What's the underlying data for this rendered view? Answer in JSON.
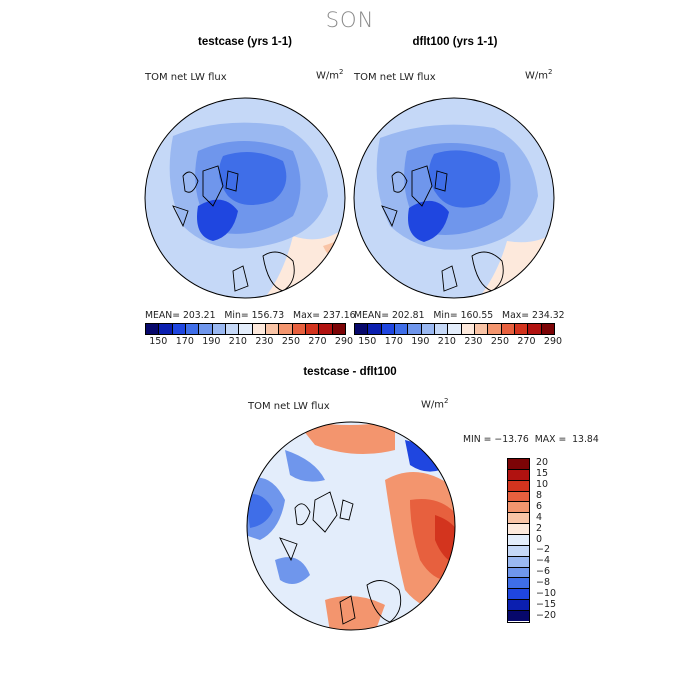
{
  "season": "SON",
  "panels": [
    {
      "title": "testcase (yrs 1-1)",
      "variable": "TOM net LW flux",
      "units_base": "W/m",
      "units_exp": "2",
      "stats": {
        "mean_label": "MEAN=",
        "mean": "203.21",
        "min_label": "Min=",
        "min": "156.73",
        "max_label": "Max=",
        "max": "237.16"
      }
    },
    {
      "title": "dflt100 (yrs 1-1)",
      "variable": "TOM net LW flux",
      "units_base": "W/m",
      "units_exp": "2",
      "stats": {
        "mean_label": "MEAN=",
        "mean": "202.81",
        "min_label": "Min=",
        "min": "160.55",
        "max_label": "Max=",
        "max": "234.32"
      }
    }
  ],
  "colorbar_top": {
    "colors": [
      "#07086b",
      "#0b1fb0",
      "#1f46e0",
      "#3f6ee8",
      "#6f96ec",
      "#9ab8f1",
      "#c5d8f7",
      "#e3edfb",
      "#fde9dc",
      "#f9c4a6",
      "#f3956e",
      "#e7603e",
      "#d3341e",
      "#b11210",
      "#7c0406"
    ],
    "ticks": [
      "150",
      "170",
      "190",
      "210",
      "230",
      "250",
      "270",
      "290"
    ]
  },
  "diff": {
    "title": "testcase - dflt100",
    "variable": "TOM net LW flux",
    "units_base": "W/m",
    "units_exp": "2",
    "minmax": "MIN = −13.76  MAX =  13.84",
    "colorbar": {
      "colors": [
        "#7c0406",
        "#b11210",
        "#d3341e",
        "#e7603e",
        "#f3956e",
        "#f9c4a6",
        "#fde9dc",
        "#e3edfb",
        "#c5d8f7",
        "#9ab8f1",
        "#6f96ec",
        "#3f6ee8",
        "#1f46e0",
        "#0b1fb0",
        "#07086b"
      ],
      "ticks": [
        "20",
        "15",
        "10",
        "8",
        "6",
        "4",
        "2",
        "0",
        "−2",
        "−4",
        "−6",
        "−8",
        "−10",
        "−15",
        "−20"
      ]
    }
  },
  "map_colors": {
    "abs_light": "#c5d8f7",
    "abs_mid": "#9ab8f1",
    "abs_med": "#6f96ec",
    "abs_dark": "#3f6ee8",
    "abs_deep": "#1f46e0",
    "abs_warm": "#fde9dc",
    "abs_warm2": "#f9c4a6",
    "diff_base": "#e3edfb",
    "diff_warm": "#f3956e",
    "diff_hot": "#e7603e",
    "diff_hotter": "#d3341e",
    "diff_cool": "#6f96ec",
    "diff_cooler": "#3f6ee8",
    "diff_coolest": "#1f46e0"
  }
}
